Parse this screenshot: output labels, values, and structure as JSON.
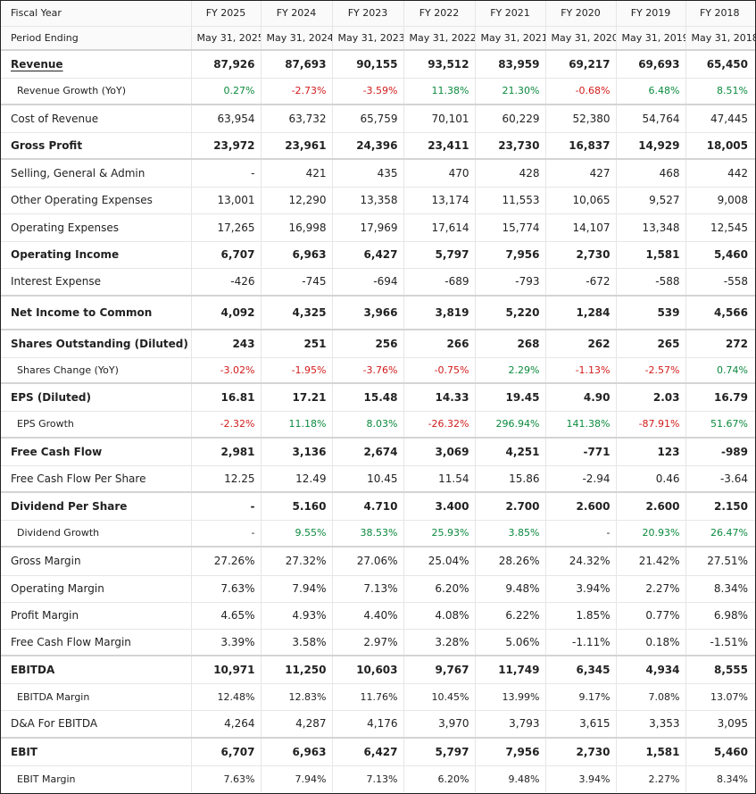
{
  "header": {
    "fiscal_year_label": "Fiscal Year",
    "period_ending_label": "Period Ending",
    "years": [
      "FY 2025",
      "FY 2024",
      "FY 2023",
      "FY 2022",
      "FY 2021",
      "FY 2020",
      "FY 2019",
      "FY 2018"
    ],
    "period_dates": [
      "May 31, 2025",
      "May 31, 2024",
      "May 31, 2023",
      "May 31, 2022",
      "May 31, 2021",
      "May 31, 2020",
      "May 31, 2019",
      "May 31, 2018"
    ]
  },
  "rows": [
    {
      "id": "revenue",
      "label": "Revenue",
      "values": [
        "87,926",
        "87,693",
        "90,155",
        "93,512",
        "83,959",
        "69,217",
        "69,693",
        "65,450"
      ]
    },
    {
      "id": "revenue-growth",
      "label": "Revenue Growth (YoY)",
      "values": [
        "0.27%",
        "-2.73%",
        "-3.59%",
        "11.38%",
        "21.30%",
        "-0.68%",
        "6.48%",
        "8.51%"
      ]
    },
    {
      "id": "cost-of-revenue",
      "label": "Cost of Revenue",
      "values": [
        "63,954",
        "63,732",
        "65,759",
        "70,101",
        "60,229",
        "52,380",
        "54,764",
        "47,445"
      ]
    },
    {
      "id": "gross-profit",
      "label": "Gross Profit",
      "values": [
        "23,972",
        "23,961",
        "24,396",
        "23,411",
        "23,730",
        "16,837",
        "14,929",
        "18,005"
      ]
    },
    {
      "id": "sga",
      "label": "Selling, General & Admin",
      "values": [
        "-",
        "421",
        "435",
        "470",
        "428",
        "427",
        "468",
        "442"
      ]
    },
    {
      "id": "other-opex",
      "label": "Other Operating Expenses",
      "values": [
        "13,001",
        "12,290",
        "13,358",
        "13,174",
        "11,553",
        "10,065",
        "9,527",
        "9,008"
      ]
    },
    {
      "id": "opex",
      "label": "Operating Expenses",
      "values": [
        "17,265",
        "16,998",
        "17,969",
        "17,614",
        "15,774",
        "14,107",
        "13,348",
        "12,545"
      ]
    },
    {
      "id": "operating-income",
      "label": "Operating Income",
      "values": [
        "6,707",
        "6,963",
        "6,427",
        "5,797",
        "7,956",
        "2,730",
        "1,581",
        "5,460"
      ]
    },
    {
      "id": "interest-expense",
      "label": "Interest Expense",
      "values": [
        "-426",
        "-745",
        "-694",
        "-689",
        "-793",
        "-672",
        "-588",
        "-558"
      ]
    },
    {
      "id": "net-income",
      "label": "Net Income to Common",
      "values": [
        "4,092",
        "4,325",
        "3,966",
        "3,819",
        "5,220",
        "1,284",
        "539",
        "4,566"
      ]
    },
    {
      "id": "shares-outstanding",
      "label": "Shares Outstanding (Diluted)",
      "values": [
        "243",
        "251",
        "256",
        "266",
        "268",
        "262",
        "265",
        "272"
      ]
    },
    {
      "id": "shares-change",
      "label": "Shares Change (YoY)",
      "values": [
        "-3.02%",
        "-1.95%",
        "-3.76%",
        "-0.75%",
        "2.29%",
        "-1.13%",
        "-2.57%",
        "0.74%"
      ]
    },
    {
      "id": "eps",
      "label": "EPS (Diluted)",
      "values": [
        "16.81",
        "17.21",
        "15.48",
        "14.33",
        "19.45",
        "4.90",
        "2.03",
        "16.79"
      ]
    },
    {
      "id": "eps-growth",
      "label": "EPS Growth",
      "values": [
        "-2.32%",
        "11.18%",
        "8.03%",
        "-26.32%",
        "296.94%",
        "141.38%",
        "-87.91%",
        "51.67%"
      ]
    },
    {
      "id": "fcf",
      "label": "Free Cash Flow",
      "values": [
        "2,981",
        "3,136",
        "2,674",
        "3,069",
        "4,251",
        "-771",
        "123",
        "-989"
      ]
    },
    {
      "id": "fcf-per-share",
      "label": "Free Cash Flow Per Share",
      "values": [
        "12.25",
        "12.49",
        "10.45",
        "11.54",
        "15.86",
        "-2.94",
        "0.46",
        "-3.64"
      ]
    },
    {
      "id": "dps",
      "label": "Dividend Per Share",
      "values": [
        "-",
        "5.160",
        "4.710",
        "3.400",
        "2.700",
        "2.600",
        "2.600",
        "2.150"
      ]
    },
    {
      "id": "dividend-growth",
      "label": "Dividend Growth",
      "values": [
        "-",
        "9.55%",
        "38.53%",
        "25.93%",
        "3.85%",
        "-",
        "20.93%",
        "26.47%"
      ]
    },
    {
      "id": "gross-margin",
      "label": "Gross Margin",
      "values": [
        "27.26%",
        "27.32%",
        "27.06%",
        "25.04%",
        "28.26%",
        "24.32%",
        "21.42%",
        "27.51%"
      ]
    },
    {
      "id": "operating-margin",
      "label": "Operating Margin",
      "values": [
        "7.63%",
        "7.94%",
        "7.13%",
        "6.20%",
        "9.48%",
        "3.94%",
        "2.27%",
        "8.34%"
      ]
    },
    {
      "id": "profit-margin",
      "label": "Profit Margin",
      "values": [
        "4.65%",
        "4.93%",
        "4.40%",
        "4.08%",
        "6.22%",
        "1.85%",
        "0.77%",
        "6.98%"
      ]
    },
    {
      "id": "fcf-margin",
      "label": "Free Cash Flow Margin",
      "values": [
        "3.39%",
        "3.58%",
        "2.97%",
        "3.28%",
        "5.06%",
        "-1.11%",
        "0.18%",
        "-1.51%"
      ]
    },
    {
      "id": "ebitda",
      "label": "EBITDA",
      "values": [
        "10,971",
        "11,250",
        "10,603",
        "9,767",
        "11,749",
        "6,345",
        "4,934",
        "8,555"
      ]
    },
    {
      "id": "ebitda-margin",
      "label": "EBITDA Margin",
      "values": [
        "12.48%",
        "12.83%",
        "11.76%",
        "10.45%",
        "13.99%",
        "9.17%",
        "7.08%",
        "13.07%"
      ]
    },
    {
      "id": "da-for-ebitda",
      "label": "D&A For EBITDA",
      "values": [
        "4,264",
        "4,287",
        "4,176",
        "3,970",
        "3,793",
        "3,615",
        "3,353",
        "3,095"
      ]
    },
    {
      "id": "ebit",
      "label": "EBIT",
      "values": [
        "6,707",
        "6,963",
        "6,427",
        "5,797",
        "7,956",
        "2,730",
        "1,581",
        "5,460"
      ]
    },
    {
      "id": "ebit-margin",
      "label": "EBIT Margin",
      "values": [
        "7.63%",
        "7.94%",
        "7.13%",
        "6.20%",
        "9.48%",
        "3.94%",
        "2.27%",
        "8.34%"
      ]
    }
  ],
  "colors": {
    "positive": "#0b8a3e",
    "negative": "#d11b1b"
  }
}
